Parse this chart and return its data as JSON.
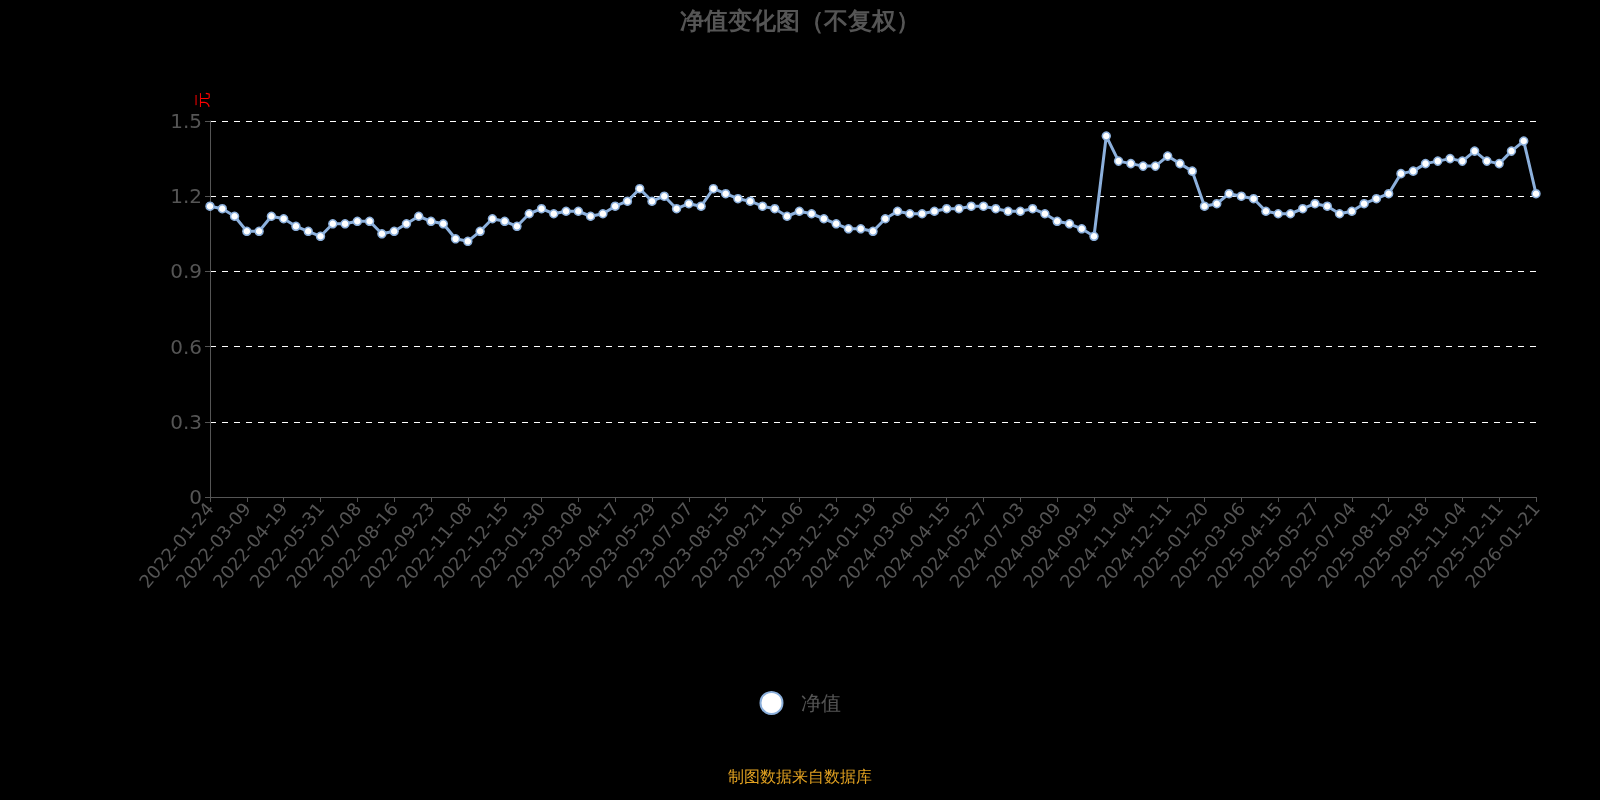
{
  "chart_data": {
    "type": "line",
    "title": "净值变化图（不复权）",
    "ylabel": "元",
    "categories": [
      "2022-01-24",
      null,
      null,
      "2022-03-09",
      null,
      null,
      "2022-04-19",
      null,
      null,
      "2022-05-31",
      null,
      null,
      "2022-07-08",
      null,
      null,
      "2022-08-16",
      null,
      null,
      "2022-09-23",
      null,
      null,
      "2022-11-08",
      null,
      null,
      "2022-12-15",
      null,
      null,
      "2023-01-30",
      null,
      null,
      "2023-03-08",
      null,
      null,
      "2023-04-17",
      null,
      null,
      "2023-05-29",
      null,
      null,
      "2023-07-07",
      null,
      null,
      "2023-08-15",
      null,
      null,
      "2023-09-21",
      null,
      null,
      "2023-11-06",
      null,
      null,
      "2023-12-13",
      null,
      null,
      "2024-01-19",
      null,
      null,
      "2024-03-06",
      null,
      null,
      "2024-04-15",
      null,
      null,
      "2024-05-27",
      null,
      null,
      "2024-07-03",
      null,
      null,
      "2024-08-09",
      null,
      null,
      "2024-09-19",
      null,
      null,
      "2024-11-04",
      null,
      null,
      "2024-12-11",
      null,
      null,
      "2025-01-20",
      null,
      null,
      "2025-03-06",
      null,
      null,
      "2025-04-15",
      null,
      null,
      "2025-05-27",
      null,
      null,
      "2025-07-04",
      null,
      null,
      "2025-08-12",
      null,
      null,
      "2025-09-18",
      null,
      null,
      "2025-11-04",
      null,
      null,
      "2025-12-11",
      null,
      null,
      "2026-01-21"
    ],
    "series": [
      {
        "name": "净值",
        "color": "#8cb0dc",
        "values": [
          1.16,
          1.15,
          1.12,
          1.06,
          1.06,
          1.12,
          1.11,
          1.08,
          1.06,
          1.04,
          1.09,
          1.09,
          1.1,
          1.1,
          1.05,
          1.06,
          1.09,
          1.12,
          1.1,
          1.09,
          1.03,
          1.02,
          1.06,
          1.11,
          1.1,
          1.08,
          1.13,
          1.15,
          1.13,
          1.14,
          1.14,
          1.12,
          1.13,
          1.16,
          1.18,
          1.23,
          1.18,
          1.2,
          1.15,
          1.17,
          1.16,
          1.23,
          1.21,
          1.19,
          1.18,
          1.16,
          1.15,
          1.12,
          1.14,
          1.13,
          1.11,
          1.09,
          1.07,
          1.07,
          1.06,
          1.11,
          1.14,
          1.13,
          1.13,
          1.14,
          1.15,
          1.15,
          1.16,
          1.16,
          1.15,
          1.14,
          1.14,
          1.15,
          1.13,
          1.1,
          1.09,
          1.07,
          1.04,
          1.44,
          1.34,
          1.33,
          1.32,
          1.32,
          1.36,
          1.33,
          1.3,
          1.16,
          1.17,
          1.21,
          1.2,
          1.19,
          1.14,
          1.13,
          1.13,
          1.15,
          1.17,
          1.16,
          1.13,
          1.14,
          1.17,
          1.19,
          1.21,
          1.29,
          1.3,
          1.33,
          1.34,
          1.35,
          1.34,
          1.38,
          1.34,
          1.33,
          1.38,
          1.42,
          1.21
        ]
      }
    ],
    "ylim": [
      0,
      1.5
    ],
    "yticks": [
      0,
      0.3,
      0.6,
      0.9,
      1.2,
      1.5
    ],
    "grid": "y",
    "legend": "bottom",
    "marker": "circle",
    "line_style": "solid",
    "annotations": [
      "制图数据来自数据库"
    ]
  }
}
